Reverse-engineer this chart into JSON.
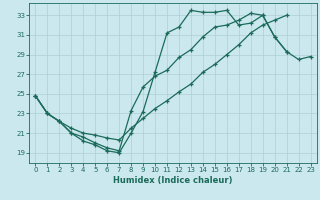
{
  "xlabel": "Humidex (Indice chaleur)",
  "background_color": "#cce8ef",
  "line_color": "#1a6b5a",
  "grid_color": "#aecdd5",
  "xlim": [
    -0.5,
    23.5
  ],
  "ylim": [
    18.0,
    34.2
  ],
  "xticks": [
    0,
    1,
    2,
    3,
    4,
    5,
    6,
    7,
    8,
    9,
    10,
    11,
    12,
    13,
    14,
    15,
    16,
    17,
    18,
    19,
    20,
    21,
    22,
    23
  ],
  "yticks": [
    19,
    21,
    23,
    25,
    27,
    29,
    31,
    33
  ],
  "line1_y": [
    24.8,
    23.0,
    22.2,
    21.0,
    20.2,
    19.8,
    19.2,
    19.0,
    21.0,
    23.2,
    27.2,
    31.2,
    31.8,
    33.5,
    33.3,
    33.3,
    33.5,
    32.0,
    32.2,
    33.0,
    30.8,
    29.3,
    null,
    null
  ],
  "line2_y": [
    24.8,
    23.0,
    22.2,
    21.5,
    21.0,
    20.8,
    20.5,
    20.3,
    21.5,
    22.5,
    23.5,
    24.3,
    25.2,
    26.0,
    27.2,
    28.0,
    29.0,
    30.0,
    31.2,
    32.0,
    32.5,
    33.0,
    null,
    null
  ],
  "line3_y": [
    24.8,
    23.0,
    22.2,
    21.0,
    20.6,
    20.0,
    19.5,
    19.2,
    23.3,
    25.7,
    26.8,
    27.4,
    28.7,
    29.5,
    30.8,
    31.8,
    32.0,
    32.5,
    33.2,
    33.0,
    30.8,
    29.3,
    28.5,
    28.8
  ]
}
